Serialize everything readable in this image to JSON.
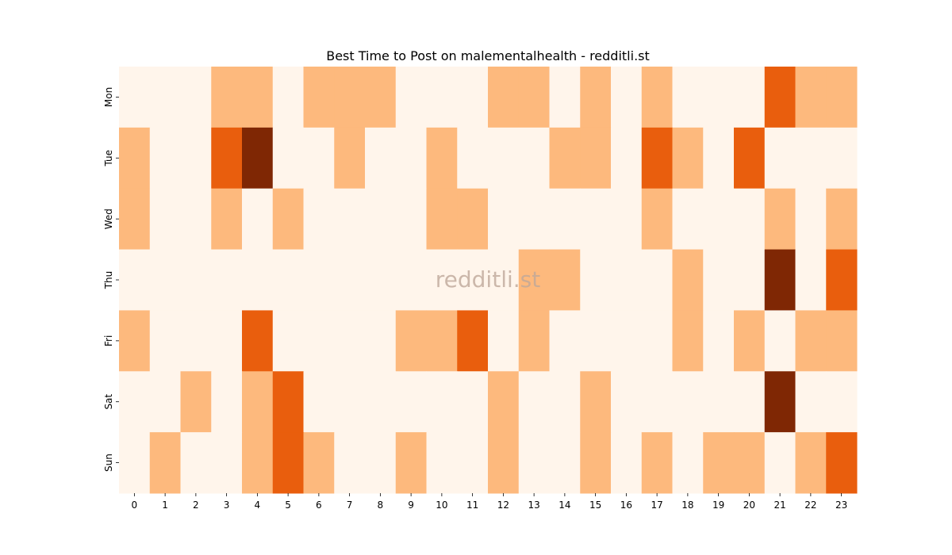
{
  "chart_data": {
    "type": "heatmap",
    "title": "Best Time to Post on malementalhealth - redditli.st",
    "watermark": "redditli.st",
    "x": [
      "0",
      "1",
      "2",
      "3",
      "4",
      "5",
      "6",
      "7",
      "8",
      "9",
      "10",
      "11",
      "12",
      "13",
      "14",
      "15",
      "16",
      "17",
      "18",
      "19",
      "20",
      "21",
      "22",
      "23"
    ],
    "y": [
      "Mon",
      "Tue",
      "Wed",
      "Thu",
      "Fri",
      "Sat",
      "Sun"
    ],
    "values": [
      [
        0,
        0,
        0,
        1,
        1,
        0,
        1,
        1,
        1,
        0,
        0,
        0,
        1,
        1,
        0,
        1,
        0,
        1,
        0,
        0,
        0,
        2,
        1,
        1
      ],
      [
        1,
        0,
        0,
        2,
        3,
        0,
        0,
        1,
        0,
        0,
        1,
        0,
        0,
        0,
        1,
        1,
        0,
        2,
        1,
        0,
        2,
        0,
        0,
        0
      ],
      [
        1,
        0,
        0,
        1,
        0,
        1,
        0,
        0,
        0,
        0,
        1,
        1,
        0,
        0,
        0,
        0,
        0,
        1,
        0,
        0,
        0,
        1,
        0,
        1
      ],
      [
        0,
        0,
        0,
        0,
        0,
        0,
        0,
        0,
        0,
        0,
        0,
        0,
        0,
        1,
        1,
        0,
        0,
        0,
        1,
        0,
        0,
        3,
        0,
        2
      ],
      [
        1,
        0,
        0,
        0,
        2,
        0,
        0,
        0,
        0,
        1,
        1,
        2,
        0,
        1,
        0,
        0,
        0,
        0,
        1,
        0,
        1,
        0,
        1,
        1
      ],
      [
        0,
        0,
        1,
        0,
        1,
        2,
        0,
        0,
        0,
        0,
        0,
        0,
        1,
        0,
        0,
        1,
        0,
        0,
        0,
        0,
        0,
        3,
        0,
        0
      ],
      [
        0,
        1,
        0,
        0,
        1,
        2,
        1,
        0,
        0,
        1,
        0,
        0,
        1,
        0,
        0,
        1,
        0,
        1,
        0,
        1,
        1,
        0,
        1,
        2
      ]
    ],
    "colors": [
      "#fff5eb",
      "#fdb97d",
      "#e95e0d",
      "#7f2704"
    ],
    "colorbar": false
  }
}
